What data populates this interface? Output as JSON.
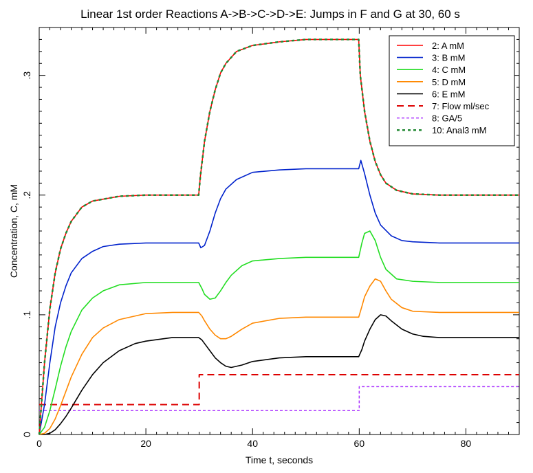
{
  "chart_data": {
    "type": "line",
    "title": "Linear 1st order Reactions A->B->C->D->E: Jumps in F and G at 30, 60 s",
    "xlabel": "Time t, seconds",
    "ylabel": "Concentration, C, mM",
    "xlim": [
      0,
      90
    ],
    "ylim": [
      0,
      0.34
    ],
    "x_ticks": [
      0,
      20,
      40,
      60,
      80
    ],
    "x_tick_labels": [
      "0",
      "20",
      "40",
      "60",
      "80"
    ],
    "y_ticks": [
      0,
      0.1,
      0.2,
      0.3
    ],
    "y_tick_labels": [
      "0",
      ".1",
      ".2",
      ".3"
    ],
    "legend_position": "top-right",
    "grid": false,
    "series": [
      {
        "name": "2: A mM",
        "color": "#ff0000",
        "style": "solid",
        "x": [
          0,
          1,
          2,
          3,
          4,
          5,
          6,
          8,
          10,
          15,
          20,
          25,
          29.9,
          30.2,
          31,
          32,
          33,
          34,
          35,
          37,
          40,
          45,
          50,
          55,
          59.9,
          60.2,
          61,
          62,
          63,
          64,
          65,
          67,
          70,
          75,
          80,
          85,
          90
        ],
        "y": [
          0,
          0.06,
          0.105,
          0.135,
          0.155,
          0.168,
          0.178,
          0.19,
          0.195,
          0.199,
          0.2,
          0.2,
          0.2,
          0.215,
          0.245,
          0.27,
          0.288,
          0.302,
          0.31,
          0.32,
          0.325,
          0.328,
          0.33,
          0.33,
          0.33,
          0.3,
          0.27,
          0.245,
          0.228,
          0.217,
          0.21,
          0.204,
          0.201,
          0.2,
          0.2,
          0.2,
          0.2
        ]
      },
      {
        "name": "3: B mM",
        "color": "#0022cc",
        "style": "solid",
        "x": [
          0,
          1,
          2,
          3,
          4,
          5,
          6,
          8,
          10,
          12,
          15,
          20,
          25,
          29.9,
          30.3,
          31,
          32,
          33,
          34,
          35,
          37,
          40,
          45,
          50,
          55,
          59.9,
          60.3,
          61,
          62,
          63,
          64,
          66,
          68,
          70,
          75,
          80,
          85,
          90
        ],
        "y": [
          0,
          0.025,
          0.06,
          0.09,
          0.11,
          0.124,
          0.135,
          0.147,
          0.153,
          0.157,
          0.159,
          0.16,
          0.16,
          0.16,
          0.156,
          0.158,
          0.17,
          0.185,
          0.197,
          0.205,
          0.213,
          0.219,
          0.221,
          0.222,
          0.222,
          0.222,
          0.229,
          0.218,
          0.2,
          0.185,
          0.175,
          0.166,
          0.162,
          0.161,
          0.16,
          0.16,
          0.16,
          0.16
        ]
      },
      {
        "name": "4: C mM",
        "color": "#22dd22",
        "style": "solid",
        "x": [
          0,
          1,
          2,
          3,
          4,
          5,
          6,
          8,
          10,
          12,
          15,
          20,
          25,
          29.9,
          30.5,
          31,
          32,
          33,
          34,
          35,
          36,
          38,
          40,
          45,
          50,
          55,
          59.9,
          60.5,
          61,
          62,
          63,
          64,
          65,
          67,
          70,
          75,
          80,
          85,
          90
        ],
        "y": [
          0,
          0.006,
          0.02,
          0.038,
          0.057,
          0.073,
          0.086,
          0.104,
          0.114,
          0.12,
          0.125,
          0.127,
          0.127,
          0.127,
          0.122,
          0.117,
          0.113,
          0.114,
          0.12,
          0.127,
          0.133,
          0.141,
          0.145,
          0.147,
          0.148,
          0.148,
          0.148,
          0.16,
          0.168,
          0.17,
          0.162,
          0.148,
          0.138,
          0.13,
          0.128,
          0.127,
          0.127,
          0.127,
          0.127
        ]
      },
      {
        "name": "5: D mM",
        "color": "#ff8800",
        "style": "solid",
        "x": [
          0,
          1,
          2,
          3,
          4,
          5,
          6,
          8,
          10,
          12,
          15,
          20,
          25,
          29.9,
          30.5,
          31,
          32,
          33,
          34,
          35,
          36,
          38,
          40,
          45,
          50,
          55,
          59.9,
          60.5,
          61,
          62,
          63,
          64,
          65,
          66,
          68,
          70,
          75,
          80,
          85,
          90
        ],
        "y": [
          0,
          0.001,
          0.005,
          0.013,
          0.024,
          0.036,
          0.048,
          0.067,
          0.081,
          0.089,
          0.096,
          0.101,
          0.102,
          0.102,
          0.099,
          0.095,
          0.088,
          0.083,
          0.08,
          0.08,
          0.082,
          0.088,
          0.093,
          0.097,
          0.098,
          0.098,
          0.098,
          0.107,
          0.115,
          0.124,
          0.13,
          0.128,
          0.12,
          0.113,
          0.106,
          0.103,
          0.102,
          0.102,
          0.102,
          0.102
        ]
      },
      {
        "name": "6: E mM",
        "color": "#000000",
        "style": "solid",
        "x": [
          0,
          1,
          2,
          3,
          4,
          5,
          6,
          8,
          10,
          12,
          15,
          18,
          20,
          25,
          29.9,
          30.5,
          31,
          32,
          33,
          34,
          35,
          36,
          38,
          40,
          45,
          50,
          55,
          59.9,
          60.5,
          61,
          62,
          63,
          64,
          65,
          66,
          68,
          70,
          72,
          75,
          80,
          85,
          90
        ],
        "y": [
          0,
          0,
          0.001,
          0.004,
          0.009,
          0.015,
          0.022,
          0.037,
          0.05,
          0.06,
          0.07,
          0.076,
          0.078,
          0.081,
          0.081,
          0.079,
          0.076,
          0.07,
          0.064,
          0.06,
          0.057,
          0.056,
          0.058,
          0.061,
          0.064,
          0.065,
          0.065,
          0.065,
          0.071,
          0.078,
          0.088,
          0.096,
          0.1,
          0.099,
          0.095,
          0.088,
          0.084,
          0.082,
          0.081,
          0.081,
          0.081,
          0.081
        ]
      },
      {
        "name": "7: Flow ml/sec",
        "color": "#dd0000",
        "style": "dashed",
        "x": [
          0,
          30,
          30,
          90
        ],
        "y": [
          0.025,
          0.025,
          0.05,
          0.05
        ]
      },
      {
        "name": "8: GA/5",
        "color": "#aa33ff",
        "style": "dotted",
        "x": [
          0,
          60,
          60,
          90
        ],
        "y": [
          0.02,
          0.02,
          0.04,
          0.04
        ]
      },
      {
        "name": "10: Anal3 mM",
        "color": "#228833",
        "style": "dashed-thick",
        "x": [
          0,
          1,
          2,
          3,
          4,
          5,
          6,
          8,
          10,
          15,
          20,
          25,
          29.9,
          30.2,
          31,
          32,
          33,
          34,
          35,
          37,
          40,
          45,
          50,
          55,
          59.9,
          60.2,
          61,
          62,
          63,
          64,
          65,
          67,
          70,
          75,
          80,
          85,
          90
        ],
        "y": [
          0,
          0.06,
          0.105,
          0.135,
          0.155,
          0.168,
          0.178,
          0.19,
          0.195,
          0.199,
          0.2,
          0.2,
          0.2,
          0.215,
          0.245,
          0.27,
          0.288,
          0.302,
          0.31,
          0.32,
          0.325,
          0.328,
          0.33,
          0.33,
          0.33,
          0.3,
          0.27,
          0.245,
          0.228,
          0.217,
          0.21,
          0.204,
          0.201,
          0.2,
          0.2,
          0.2,
          0.2
        ]
      }
    ]
  }
}
